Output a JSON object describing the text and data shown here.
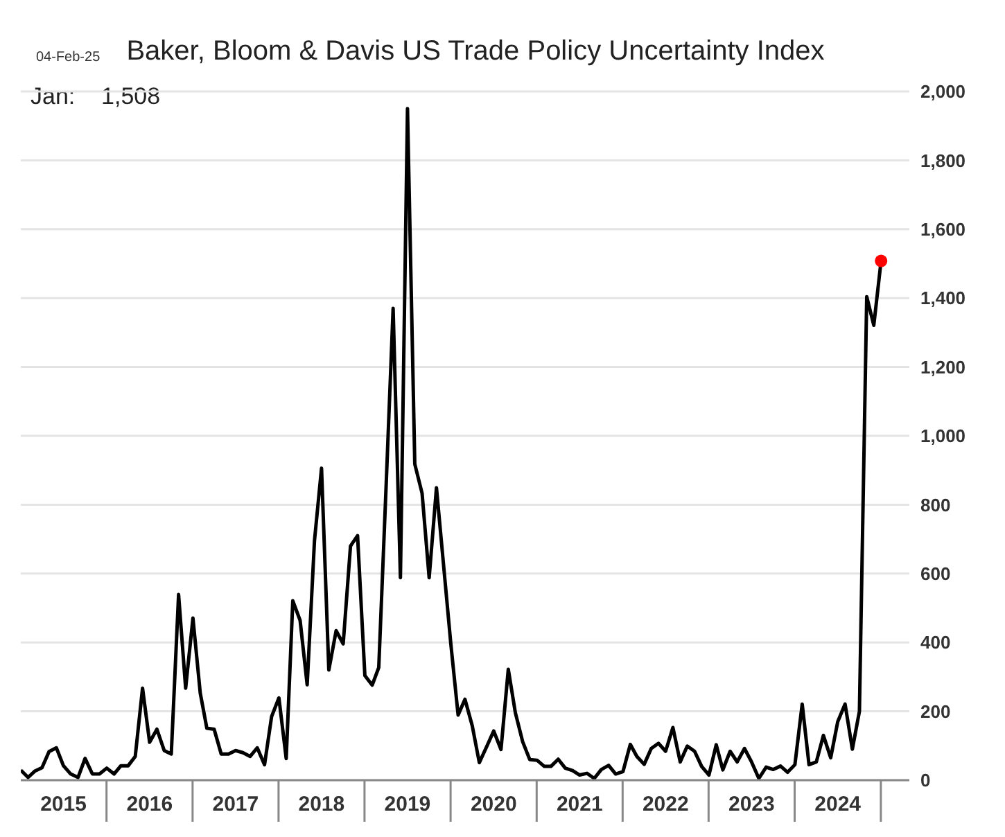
{
  "chart_data": {
    "type": "line",
    "title": "Baker, Bloom & Davis US Trade Policy Uncertainty Index",
    "annotations": [
      "04-Feb-25",
      "Jan:    1,508"
    ],
    "series": [
      {
        "type": "line",
        "color": "#000000",
        "marker": "none",
        "x": [
          "2015-01",
          "2015-02",
          "2015-03",
          "2015-04",
          "2015-05",
          "2015-06",
          "2015-07",
          "2015-08",
          "2015-09",
          "2015-10",
          "2015-11",
          "2015-12",
          "2016-01",
          "2016-02",
          "2016-03",
          "2016-04",
          "2016-05",
          "2016-06",
          "2016-07",
          "2016-08",
          "2016-09",
          "2016-10",
          "2016-11",
          "2016-12",
          "2017-01",
          "2017-02",
          "2017-03",
          "2017-04",
          "2017-05",
          "2017-06",
          "2017-07",
          "2017-08",
          "2017-09",
          "2017-10",
          "2017-11",
          "2017-12",
          "2018-01",
          "2018-02",
          "2018-03",
          "2018-04",
          "2018-05",
          "2018-06",
          "2018-07",
          "2018-08",
          "2018-09",
          "2018-10",
          "2018-11",
          "2018-12",
          "2019-01",
          "2019-02",
          "2019-03",
          "2019-04",
          "2019-05",
          "2019-06",
          "2019-07",
          "2019-08",
          "2019-09",
          "2019-10",
          "2019-11",
          "2019-12",
          "2020-01",
          "2020-02",
          "2020-03",
          "2020-04",
          "2020-05",
          "2020-06",
          "2020-07",
          "2020-08",
          "2020-09",
          "2020-10",
          "2020-11",
          "2020-12",
          "2021-01",
          "2021-02",
          "2021-03",
          "2021-04",
          "2021-05",
          "2021-06",
          "2021-07",
          "2021-08",
          "2021-09",
          "2021-10",
          "2021-11",
          "2021-12",
          "2022-01",
          "2022-02",
          "2022-03",
          "2022-04",
          "2022-05",
          "2022-06",
          "2022-07",
          "2022-08",
          "2022-09",
          "2022-10",
          "2022-11",
          "2022-12",
          "2023-01",
          "2023-02",
          "2023-03",
          "2023-04",
          "2023-05",
          "2023-06",
          "2023-07",
          "2023-08",
          "2023-09",
          "2023-10",
          "2023-11",
          "2023-12",
          "2024-01",
          "2024-02",
          "2024-03",
          "2024-04",
          "2024-05",
          "2024-06",
          "2024-07",
          "2024-08",
          "2024-09",
          "2024-10",
          "2024-11",
          "2024-12",
          "2025-01"
        ],
        "values": [
          29,
          8,
          26,
          36,
          83,
          94,
          42,
          18,
          8,
          63,
          18,
          18,
          35,
          18,
          42,
          42,
          69,
          267,
          110,
          148,
          86,
          76,
          539,
          267,
          471,
          253,
          151,
          148,
          76,
          76,
          86,
          80,
          69,
          94,
          45,
          185,
          239,
          63,
          521,
          464,
          277,
          695,
          906,
          320,
          434,
          396,
          680,
          710,
          304,
          276,
          327,
          850,
          1370,
          588,
          1950,
          918,
          833,
          588,
          849,
          626,
          396,
          189,
          235,
          158,
          51,
          97,
          143,
          89,
          322,
          196,
          112,
          60,
          58,
          40,
          40,
          61,
          35,
          28,
          15,
          20,
          5,
          31,
          43,
          18,
          25,
          104,
          69,
          46,
          92,
          107,
          84,
          153,
          53,
          99,
          84,
          40,
          15,
          103,
          30,
          84,
          53,
          92,
          53,
          5,
          38,
          31,
          41,
          23,
          45,
          221,
          45,
          53,
          130,
          65,
          170,
          221,
          90,
          200,
          1404,
          1321,
          1508
        ]
      },
      {
        "type": "scatter",
        "color": "#ff0000",
        "marker": "circle",
        "x": [
          "2025-01"
        ],
        "values": [
          1508
        ]
      }
    ],
    "xlim": [
      "2015-01",
      "2025-05"
    ],
    "xticks": [
      {
        "value": "2015-07",
        "label": "2015"
      },
      {
        "value": "2016-07",
        "label": "2016"
      },
      {
        "value": "2017-07",
        "label": "2017"
      },
      {
        "value": "2018-07",
        "label": "2018"
      },
      {
        "value": "2019-07",
        "label": "2019"
      },
      {
        "value": "2020-07",
        "label": "2020"
      },
      {
        "value": "2021-07",
        "label": "2021"
      },
      {
        "value": "2022-07",
        "label": "2022"
      },
      {
        "value": "2023-07",
        "label": "2023"
      },
      {
        "value": "2024-07",
        "label": "2024"
      }
    ],
    "ylim": [
      0,
      2000
    ],
    "yticks": [
      0,
      200,
      400,
      600,
      800,
      {
        "value": 1000,
        "label": "1,000"
      },
      {
        "value": 1200,
        "label": "1,200"
      },
      {
        "value": 1400,
        "label": "1,400"
      },
      {
        "value": 1600,
        "label": "1,600"
      },
      {
        "value": 1800,
        "label": "1,800"
      },
      {
        "value": 2000,
        "label": "2,000"
      }
    ],
    "grid": "y"
  }
}
